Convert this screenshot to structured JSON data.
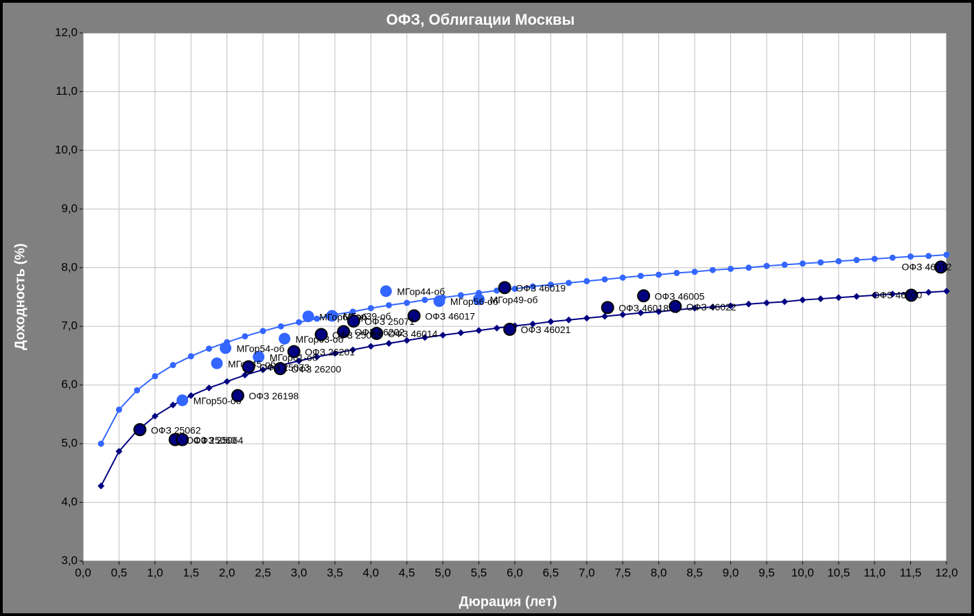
{
  "chart_data": {
    "type": "scatter",
    "title": "ОФЗ, Облигации Москвы",
    "xlabel": "Дюрация (лет)",
    "ylabel": "Доходность (%)",
    "xlim": [
      0,
      12
    ],
    "ylim": [
      3,
      12
    ],
    "grid": true,
    "xticks": [
      {
        "value": 0,
        "label": "0,0"
      },
      {
        "value": 0.5,
        "label": "0,5"
      },
      {
        "value": 1,
        "label": "1,0"
      },
      {
        "value": 1.5,
        "label": "1,5"
      },
      {
        "value": 2,
        "label": "2,0"
      },
      {
        "value": 2.5,
        "label": "2,5"
      },
      {
        "value": 3,
        "label": "3,0"
      },
      {
        "value": 3.5,
        "label": "3,5"
      },
      {
        "value": 4,
        "label": "4,0"
      },
      {
        "value": 4.5,
        "label": "4,5"
      },
      {
        "value": 5,
        "label": "5,0"
      },
      {
        "value": 5.5,
        "label": "5,5"
      },
      {
        "value": 6,
        "label": "6,0"
      },
      {
        "value": 6.5,
        "label": "6,5"
      },
      {
        "value": 7,
        "label": "7,0"
      },
      {
        "value": 7.5,
        "label": "7,5"
      },
      {
        "value": 8,
        "label": "8,0"
      },
      {
        "value": 8.5,
        "label": "8,5"
      },
      {
        "value": 9,
        "label": "9,0"
      },
      {
        "value": 9.5,
        "label": "9,5"
      },
      {
        "value": 10,
        "label": "10,0"
      },
      {
        "value": 10.5,
        "label": "10,5"
      },
      {
        "value": 11,
        "label": "11,0"
      },
      {
        "value": 11.5,
        "label": "11,5"
      },
      {
        "value": 12,
        "label": "12,0"
      }
    ],
    "yticks": [
      {
        "value": 3,
        "label": "3,0"
      },
      {
        "value": 4,
        "label": "4,0"
      },
      {
        "value": 5,
        "label": "5,0"
      },
      {
        "value": 6,
        "label": "6,0"
      },
      {
        "value": 7,
        "label": "7,0"
      },
      {
        "value": 8,
        "label": "8,0"
      },
      {
        "value": 9,
        "label": "9,0"
      },
      {
        "value": 10,
        "label": "10,0"
      },
      {
        "value": 11,
        "label": "11,0"
      },
      {
        "value": 12,
        "label": "12,0"
      }
    ],
    "series": [
      {
        "style": "line",
        "color": "#3366ff",
        "x": [
          0.25,
          0.5,
          0.75,
          1,
          1.25,
          1.5,
          1.75,
          2,
          2.25,
          2.5,
          2.75,
          3,
          3.25,
          3.5,
          3.75,
          4,
          4.25,
          4.5,
          4.75,
          5,
          5.25,
          5.5,
          5.75,
          6,
          6.25,
          6.5,
          6.75,
          7,
          7.25,
          7.5,
          7.75,
          8,
          8.25,
          8.5,
          8.75,
          9,
          9.25,
          9.5,
          9.75,
          10,
          10.25,
          10.5,
          10.75,
          11,
          11.25,
          11.5,
          11.75,
          12
        ],
        "values": [
          5.0,
          5.58,
          5.91,
          6.15,
          6.34,
          6.49,
          6.62,
          6.73,
          6.83,
          6.92,
          7.0,
          7.07,
          7.13,
          7.2,
          7.25,
          7.31,
          7.36,
          7.4,
          7.45,
          7.49,
          7.53,
          7.57,
          7.61,
          7.64,
          7.68,
          7.71,
          7.74,
          7.77,
          7.8,
          7.83,
          7.86,
          7.88,
          7.91,
          7.93,
          7.96,
          7.98,
          8.0,
          8.03,
          8.05,
          8.07,
          8.09,
          8.11,
          8.13,
          8.15,
          8.17,
          8.19,
          8.2,
          8.22
        ]
      },
      {
        "style": "line",
        "color": "#000080",
        "x": [
          0.25,
          0.5,
          0.75,
          1,
          1.25,
          1.5,
          1.75,
          2,
          2.25,
          2.5,
          2.75,
          3,
          3.25,
          3.5,
          3.75,
          4,
          4.25,
          4.5,
          4.75,
          5,
          5.25,
          5.5,
          5.75,
          6,
          6.25,
          6.5,
          6.75,
          7,
          7.25,
          7.5,
          7.75,
          8,
          8.25,
          8.5,
          8.75,
          9,
          9.25,
          9.5,
          9.75,
          10,
          10.25,
          10.5,
          10.75,
          11,
          11.25,
          11.5,
          11.75,
          12
        ],
        "values": [
          4.28,
          4.87,
          5.22,
          5.47,
          5.66,
          5.82,
          5.95,
          6.06,
          6.17,
          6.26,
          6.34,
          6.41,
          6.48,
          6.54,
          6.6,
          6.66,
          6.71,
          6.76,
          6.81,
          6.85,
          6.89,
          6.93,
          6.97,
          7.01,
          7.04,
          7.08,
          7.11,
          7.14,
          7.17,
          7.2,
          7.23,
          7.25,
          7.28,
          7.31,
          7.33,
          7.35,
          7.38,
          7.4,
          7.42,
          7.45,
          7.47,
          7.49,
          7.51,
          7.53,
          7.55,
          7.57,
          7.58,
          7.6
        ]
      },
      {
        "style": "points",
        "color": "#3366ff",
        "labels": [
          "МГор44-об",
          "МГор56-об",
          "МГор49-об",
          "МГор39-об",
          "МГор62-об",
          "МГор63-об",
          "МГор54-об",
          "МГор45-об",
          "МГор61-об",
          "МГор50-об"
        ],
        "x": [
          4.21,
          4.95,
          5.5,
          3.46,
          3.13,
          2.8,
          1.98,
          1.86,
          2.44,
          1.38
        ],
        "values": [
          7.6,
          7.43,
          7.46,
          7.18,
          7.17,
          6.79,
          6.63,
          6.37,
          6.48,
          5.74
        ]
      },
      {
        "style": "points",
        "color": "#000080",
        "labels": [
          "ОФЗ 25062",
          "ОФЗ 25060",
          "ОФЗ 25064",
          "ОФЗ 26198",
          "ОФЗ 25073",
          "ОФЗ 26200",
          "ОФЗ 26201",
          "ОФЗ 25065",
          "ОФЗ 26202",
          "ОФЗ 25071",
          "ОФЗ 46014",
          "ОФЗ 46017",
          "ОФЗ 46019",
          "ОФЗ 46021",
          "ОФЗ 46018",
          "ОФЗ 46005",
          "ОФЗ 46022",
          "ОФЗ 46020",
          "ОФЗ 46012"
        ],
        "x": [
          0.79,
          1.28,
          1.38,
          2.15,
          2.3,
          2.74,
          2.93,
          3.31,
          3.62,
          3.76,
          4.08,
          4.6,
          5.86,
          5.93,
          7.29,
          7.79,
          8.23,
          11.51,
          11.92
        ],
        "values": [
          5.24,
          5.07,
          5.07,
          5.82,
          6.31,
          6.28,
          6.57,
          6.86,
          6.91,
          7.09,
          6.88,
          7.18,
          7.66,
          6.95,
          7.32,
          7.52,
          7.34,
          7.53,
          8.01
        ]
      }
    ]
  }
}
